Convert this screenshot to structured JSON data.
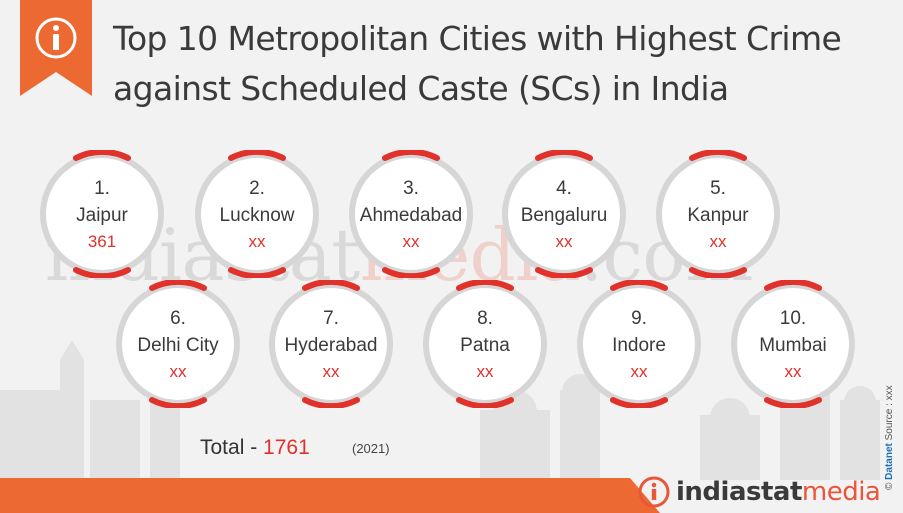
{
  "header": {
    "title": "Top 10 Metropolitan Cities with Highest Crime against Scheduled Caste (SCs) in India",
    "info_icon": "info-icon"
  },
  "watermark": {
    "text_gray1": "indiastat",
    "text_red": "media",
    "text_gray2": ".com"
  },
  "cities": [
    {
      "rank": "1.",
      "name": "Jaipur",
      "value": "361"
    },
    {
      "rank": "2.",
      "name": "Lucknow",
      "value": "xx"
    },
    {
      "rank": "3.",
      "name": "Ahmedabad",
      "value": "xx"
    },
    {
      "rank": "4.",
      "name": "Bengaluru",
      "value": "xx"
    },
    {
      "rank": "5.",
      "name": "Kanpur",
      "value": "xx"
    },
    {
      "rank": "6.",
      "name": "Delhi City",
      "value": "xx"
    },
    {
      "rank": "7.",
      "name": "Hyderabad",
      "value": "xx"
    },
    {
      "rank": "8.",
      "name": "Patna",
      "value": "xx"
    },
    {
      "rank": "9.",
      "name": "Indore",
      "value": "xx"
    },
    {
      "rank": "10.",
      "name": "Mumbai",
      "value": "xx"
    }
  ],
  "total": {
    "label": "Total",
    "separator": " - ",
    "value": "1761",
    "year": "(2021)"
  },
  "footer": {
    "brand_part1": "indiastat",
    "brand_part2": "media",
    "source_prefix": "© ",
    "source_brand": "Datanet",
    "source_text": " Source : xxx"
  },
  "colors": {
    "accent": "#e0312b",
    "orange": "#ec6a32",
    "brand_red": "#e9563a"
  }
}
